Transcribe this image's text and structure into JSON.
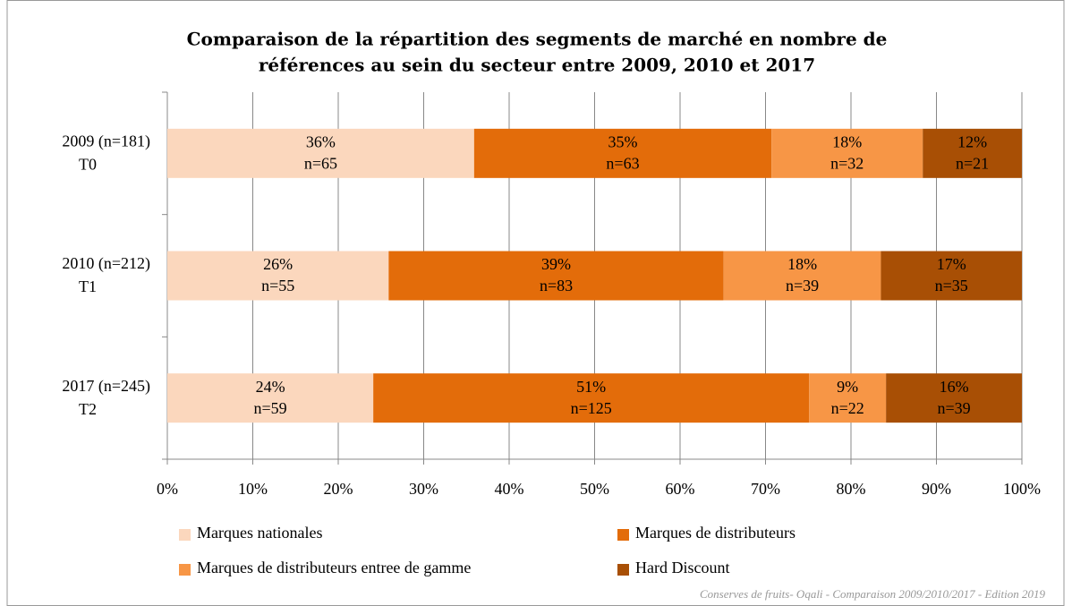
{
  "chart_data": {
    "type": "stacked_barh",
    "title": [
      "Comparaison de la répartition des segments de marché en nombre de",
      "références au sein du secteur entre 2009, 2010 et 2017"
    ],
    "categories": [
      "2009 (n=181)",
      "2010 (n=212)",
      "2017 (n=245)"
    ],
    "category_sublabels": [
      "T0",
      "T1",
      "T2"
    ],
    "series": [
      {
        "name": "Marques nationales",
        "color": "#fbd7bd",
        "values": [
          35.9,
          25.9,
          24.1
        ],
        "value_labels": [
          "36%",
          "26%",
          "24%"
        ],
        "count_labels": [
          "n=65",
          "n=55",
          "n=59"
        ]
      },
      {
        "name": "Marques de distributeurs",
        "color": "#e36c0a",
        "values": [
          34.8,
          39.2,
          51.0
        ],
        "value_labels": [
          "35%",
          "39%",
          "51%"
        ],
        "count_labels": [
          "n=63",
          "n=83",
          "n=125"
        ]
      },
      {
        "name": "Marques de distributeurs entree de gamme",
        "color": "#f79646",
        "values": [
          17.7,
          18.4,
          9.0
        ],
        "value_labels": [
          "18%",
          "18%",
          "9%"
        ],
        "count_labels": [
          "n=32",
          "n=39",
          "n=22"
        ]
      },
      {
        "name": "Hard Discount",
        "color": "#a84f05",
        "values": [
          11.6,
          16.5,
          15.9
        ],
        "value_labels": [
          "12%",
          "17%",
          "16%"
        ],
        "count_labels": [
          "n=21",
          "n=35",
          "n=39"
        ]
      }
    ],
    "xlim": [
      0,
      100
    ],
    "xticks": [
      {
        "value": 0,
        "label": "0%"
      },
      {
        "value": 10,
        "label": "10%"
      },
      {
        "value": 20,
        "label": "20%"
      },
      {
        "value": 30,
        "label": "30%"
      },
      {
        "value": 40,
        "label": "40%"
      },
      {
        "value": 50,
        "label": "50%"
      },
      {
        "value": 60,
        "label": "60%"
      },
      {
        "value": 70,
        "label": "70%"
      },
      {
        "value": 80,
        "label": "80%"
      },
      {
        "value": 90,
        "label": "90%"
      },
      {
        "value": 100,
        "label": "100%"
      }
    ],
    "grid": true,
    "legend": "bottom",
    "source": "Conserves de fruits- Oqali - Comparaison 2009/2010/2017 - Edition 2019"
  }
}
